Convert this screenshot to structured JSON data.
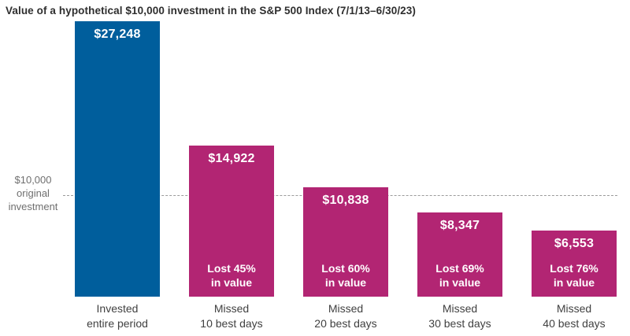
{
  "title": "Value of a hypothetical $10,000 investment in the S&P 500 Index (7/1/13–6/30/23)",
  "colors": {
    "invested_bar": "#005E9C",
    "missed_bar": "#B22573",
    "bar_text": "#FFFFFF",
    "title_text": "#2E2E2E",
    "category_text": "#414141",
    "axis_text": "#6F6F6F",
    "reference_line": "#9B9B9B"
  },
  "reference": {
    "value": 10000,
    "line1": "$10,000",
    "line2": "original",
    "line3": "investment"
  },
  "chart_data": {
    "type": "bar",
    "title": "Value of a hypothetical $10,000 investment in the S&P 500 Index (7/1/13–6/30/23)",
    "categories": [
      "Invested entire period",
      "Missed 10 best days",
      "Missed 20 best days",
      "Missed 30 best days",
      "Missed 40 best days"
    ],
    "values": [
      27248,
      14922,
      10838,
      8347,
      6553
    ],
    "xlabel": "",
    "ylabel": "",
    "ylim": [
      0,
      29000
    ],
    "grid": false,
    "legend": "none",
    "reference_line": {
      "value": 10000,
      "label": "$10,000 original investment"
    },
    "bars": [
      {
        "value": 27248,
        "value_label": "$27,248",
        "loss_line1": "",
        "loss_line2": "",
        "cat_line1": "Invested",
        "cat_line2": "entire period",
        "color": "#005E9C"
      },
      {
        "value": 14922,
        "value_label": "$14,922",
        "loss_line1": "Lost 45%",
        "loss_line2": "in value",
        "cat_line1": "Missed",
        "cat_line2": "10 best days",
        "color": "#B22573"
      },
      {
        "value": 10838,
        "value_label": "$10,838",
        "loss_line1": "Lost 60%",
        "loss_line2": "in value",
        "cat_line1": "Missed",
        "cat_line2": "20 best days",
        "color": "#B22573"
      },
      {
        "value": 8347,
        "value_label": "$8,347",
        "loss_line1": "Lost 69%",
        "loss_line2": "in value",
        "cat_line1": "Missed",
        "cat_line2": "30 best days",
        "color": "#B22573"
      },
      {
        "value": 6553,
        "value_label": "$6,553",
        "loss_line1": "Lost 76%",
        "loss_line2": "in value",
        "cat_line1": "Missed",
        "cat_line2": "40 best days",
        "color": "#B22573"
      }
    ]
  }
}
